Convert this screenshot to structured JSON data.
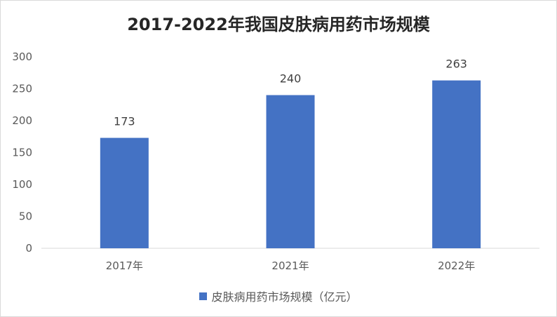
{
  "chart_data": {
    "type": "bar",
    "title": "2017-2022年我国皮肤病用药市场规模",
    "categories": [
      "2017年",
      "2021年",
      "2022年"
    ],
    "series": [
      {
        "name": "皮肤病用药市场规模（亿元）",
        "values": [
          173,
          240,
          263
        ],
        "color": "#4472C4"
      }
    ],
    "ylim": [
      0,
      300
    ],
    "yticks": [
      0,
      50,
      100,
      150,
      200,
      250,
      300
    ],
    "grid": false,
    "legend": "bottom",
    "data_labels": true
  }
}
